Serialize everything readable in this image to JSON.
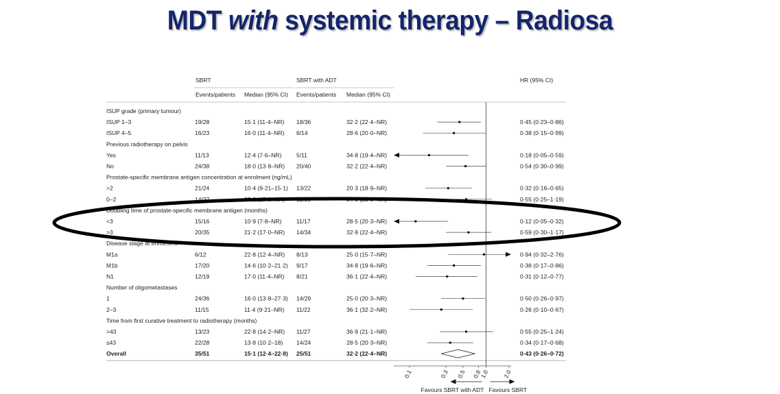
{
  "slide": {
    "title_pre": "MDT ",
    "title_em": "with",
    "title_post": " systemic therapy – Radiosa"
  },
  "table": {
    "group1": "SBRT",
    "group2": "SBRT with ADT",
    "hr_header": "HR (95% CI)",
    "col_events": "Events/patients",
    "col_median": "Median (95% CI)"
  },
  "chart_data": {
    "type": "forest",
    "x_scale": "log",
    "x_ticks": [
      "0.1",
      "0.3",
      "0.5",
      "0.8",
      "1.0",
      "2.0"
    ],
    "x_tick_values": [
      0.1,
      0.3,
      0.5,
      0.8,
      1.0,
      2.0
    ],
    "reference_line": 1.0,
    "favours_left": "Favours SBRT with ADT",
    "favours_right": "Favours SBRT",
    "rows": [
      {
        "kind": "header",
        "label": "ISUP grade (primary tumour)"
      },
      {
        "kind": "row",
        "label": "ISUP 1–3",
        "sbrt_ep": "19/28",
        "sbrt_med": "15·1 (11·4–NR)",
        "adt_ep": "18/36",
        "adt_med": "32·2 (22·4–NR)",
        "hr": 0.45,
        "lo": 0.23,
        "hi": 0.86,
        "hr_text": "0·45 (0·23–0·86)"
      },
      {
        "kind": "row",
        "label": "ISUP 4–5",
        "sbrt_ep": "16/23",
        "sbrt_med": "16·0 (11·4–NR)",
        "adt_ep": "6/14",
        "adt_med": "28·6 (20·0–NR)",
        "hr": 0.38,
        "lo": 0.15,
        "hi": 0.99,
        "hr_text": "0·38 (0·15–0·99)"
      },
      {
        "kind": "header",
        "label": "Previous radiotherapy on pelvis"
      },
      {
        "kind": "row",
        "label": "Yes",
        "sbrt_ep": "11/13",
        "sbrt_med": "12·4 (7·6–NR)",
        "adt_ep": "5/11",
        "adt_med": "34·8 (19·4–NR)",
        "hr": 0.18,
        "lo": 0.05,
        "hi": 0.59,
        "hr_text": "0·18 (0·05–0·59)"
      },
      {
        "kind": "row",
        "label": "No",
        "sbrt_ep": "24/38",
        "sbrt_med": "18·0 (13·8–NR)",
        "adt_ep": "20/40",
        "adt_med": "32·2 (22·4–NR)",
        "hr": 0.54,
        "lo": 0.3,
        "hi": 0.99,
        "hr_text": "0·54 (0·30–0·99)"
      },
      {
        "kind": "header",
        "label": "Prostate-specific membrane antigen concentration at enrolment (ng/mL)"
      },
      {
        "kind": "row",
        "label": ">2",
        "sbrt_ep": "21/24",
        "sbrt_med": "10·4 (9·21–15·1)",
        "adt_ep": "13/22",
        "adt_med": "20·3 (18·9–NR)",
        "hr": 0.32,
        "lo": 0.16,
        "hi": 0.65,
        "hr_text": "0·32 (0·16–0·65)"
      },
      {
        "kind": "row",
        "label": "0–2",
        "sbrt_ep": "14/27",
        "sbrt_med": "27·2 (17·0–NR)",
        "adt_ep": "12/29",
        "adt_med": "34·8 (28·5–NR)",
        "hr": 0.55,
        "lo": 0.25,
        "hi": 1.19,
        "hr_text": "0·55 (0·25–1·19)"
      },
      {
        "kind": "header",
        "label": "Doubling time of prostate-specific membrane antigen (months)"
      },
      {
        "kind": "row",
        "label": "<3",
        "sbrt_ep": "15/16",
        "sbrt_med": "10·9 (7·8–NR)",
        "adt_ep": "11/17",
        "adt_med": "28·5 (20·3–NR)",
        "hr": 0.12,
        "lo": 0.05,
        "hi": 0.32,
        "hr_text": "0·12 (0·05–0·32)"
      },
      {
        "kind": "row",
        "label": ">3",
        "sbrt_ep": "20/35",
        "sbrt_med": "21·2 (17·0–NR)",
        "adt_ep": "14/34",
        "adt_med": "32·9 (22·4–NR)",
        "hr": 0.59,
        "lo": 0.3,
        "hi": 1.17,
        "hr_text": "0·59 (0·30–1·17)"
      },
      {
        "kind": "header",
        "label": "Disease stage at enrolment"
      },
      {
        "kind": "row",
        "label": "M1a",
        "sbrt_ep": "6/12",
        "sbrt_med": "22·8 (12·4–NR)",
        "adt_ep": "8/13",
        "adt_med": "25·0 (15·7–NR)",
        "hr": 0.94,
        "lo": 0.32,
        "hi": 2.76,
        "hr_text": "0·94 (0·32–2·76)"
      },
      {
        "kind": "row",
        "label": "M1b",
        "sbrt_ep": "17/20",
        "sbrt_med": "14·6 (10·2–21·2)",
        "adt_ep": "9/17",
        "adt_med": "34·8 (19·6–NR)",
        "hr": 0.38,
        "lo": 0.17,
        "hi": 0.86,
        "hr_text": "0·38 (0·17–0·86)"
      },
      {
        "kind": "row",
        "label": "N1",
        "sbrt_ep": "12/19",
        "sbrt_med": "17·0 (11·4–NR)",
        "adt_ep": "8/21",
        "adt_med": "36·1 (22·4–NR)",
        "hr": 0.31,
        "lo": 0.12,
        "hi": 0.77,
        "hr_text": "0·31 (0·12–0·77)"
      },
      {
        "kind": "header",
        "label": "Number of oligometastases"
      },
      {
        "kind": "row",
        "label": "1",
        "sbrt_ep": "24/36",
        "sbrt_med": "16·0 (13·8–27·3)",
        "adt_ep": "14/29",
        "adt_med": "25·0 (20·3–NR)",
        "hr": 0.5,
        "lo": 0.26,
        "hi": 0.97,
        "hr_text": "0·50 (0·26–0·97)"
      },
      {
        "kind": "row",
        "label": "2–3",
        "sbrt_ep": "11/15",
        "sbrt_med": "11·4 (9·21–NR)",
        "adt_ep": "11/22",
        "adt_med": "36·1 (32·2–NR)",
        "hr": 0.26,
        "lo": 0.1,
        "hi": 0.67,
        "hr_text": "0·26 (0·10–0·67)"
      },
      {
        "kind": "header",
        "label": "Time from first curative treatment to radiotherapy (months)"
      },
      {
        "kind": "row",
        "label": ">43",
        "sbrt_ep": "13/23",
        "sbrt_med": "22·8 (14·2–NR)",
        "adt_ep": "11/27",
        "adt_med": "36·9 (21·1–NR)",
        "hr": 0.55,
        "lo": 0.25,
        "hi": 1.24,
        "hr_text": "0·55 (0·25–1·24)"
      },
      {
        "kind": "row",
        "label": "≤43",
        "sbrt_ep": "22/28",
        "sbrt_med": "13·8 (10·2–18)",
        "adt_ep": "14/24",
        "adt_med": "28·5 (20·3–NR)",
        "hr": 0.34,
        "lo": 0.17,
        "hi": 0.68,
        "hr_text": "0·34 (0·17–0·68)"
      },
      {
        "kind": "overall",
        "label": "Overall",
        "sbrt_ep": "35/51",
        "sbrt_med": "15·1 (12·4–22·8)",
        "adt_ep": "25/51",
        "adt_med": "32·2 (22·4–NR)",
        "hr": 0.43,
        "lo": 0.26,
        "hi": 0.72,
        "hr_text": "0·43 (0·26–0·72)"
      }
    ],
    "highlight_rows": [
      8,
      9,
      10
    ],
    "colors": {
      "title": "#14256b",
      "ink": "#1c1c1c",
      "rule": "#8c8c8c",
      "oval": "#000000"
    }
  }
}
